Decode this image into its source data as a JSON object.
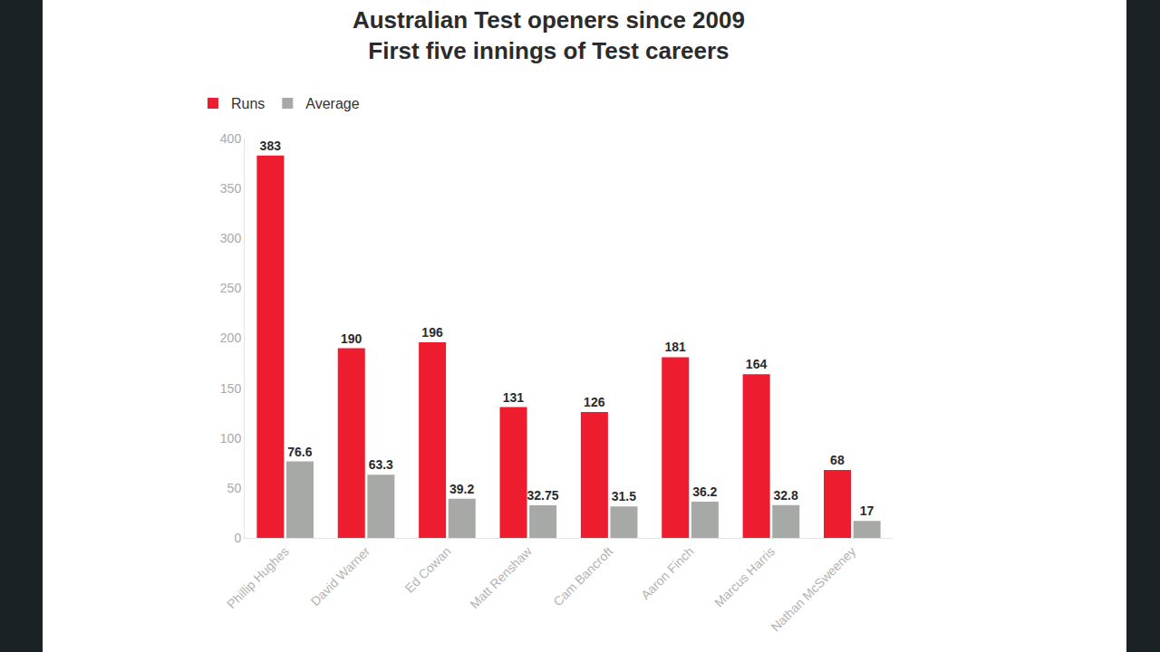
{
  "chart_data": {
    "type": "bar",
    "title": "Australian Test openers since 2009",
    "subtitle": "First five innings of Test careers",
    "categories": [
      "Phillip Hughes",
      "David Warner",
      "Ed Cowan",
      "Matt Renshaw",
      "Cam Bancroft",
      "Aaron Finch",
      "Marcus Harris",
      "Nathan McSweeney"
    ],
    "series": [
      {
        "name": "Runs",
        "color": "#ed1c2e",
        "values": [
          383,
          190,
          196,
          131,
          126,
          181,
          164,
          68
        ]
      },
      {
        "name": "Average",
        "color": "#a6a9a6",
        "values": [
          76.6,
          63.3,
          39.2,
          32.75,
          31.5,
          36.2,
          32.8,
          17
        ]
      }
    ],
    "ylim": [
      0,
      400
    ],
    "yticks": [
      0,
      50,
      100,
      150,
      200,
      250,
      300,
      350,
      400
    ],
    "grid": false,
    "legend": "top left",
    "data_labels": true
  }
}
